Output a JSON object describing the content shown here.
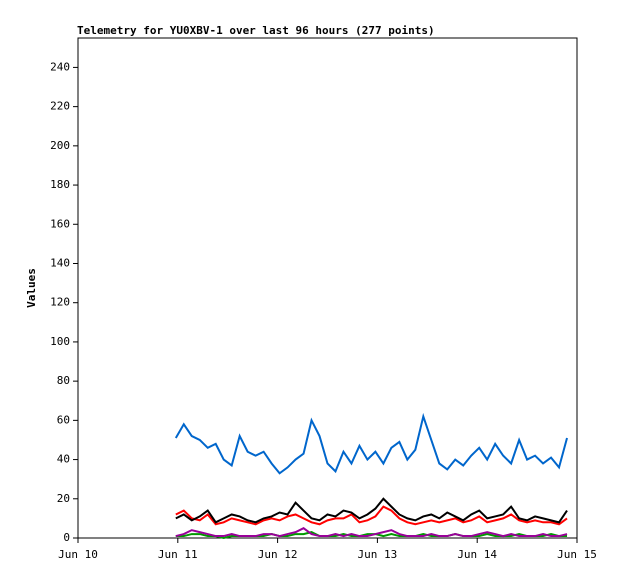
{
  "chart_data": {
    "type": "line",
    "title": "Telemetry for YU0XBV-1 over last 96 hours (277 points)",
    "y_label": "Values",
    "xlim": [
      10,
      15
    ],
    "xticks": [
      {
        "value": 10,
        "label": "Jun 10"
      },
      {
        "value": 11,
        "label": "Jun 11"
      },
      {
        "value": 12,
        "label": "Jun 12"
      },
      {
        "value": 13,
        "label": "Jun 13"
      },
      {
        "value": 14,
        "label": "Jun 14"
      },
      {
        "value": 15,
        "label": "Jun 15"
      }
    ],
    "ylim": [
      0,
      255
    ],
    "yticks": [
      0,
      20,
      40,
      60,
      80,
      100,
      120,
      140,
      160,
      180,
      200,
      220,
      240
    ],
    "x": [
      10.98,
      11.06,
      11.14,
      11.22,
      11.3,
      11.38,
      11.46,
      11.54,
      11.62,
      11.7,
      11.78,
      11.86,
      11.94,
      12.02,
      12.1,
      12.18,
      12.26,
      12.34,
      12.42,
      12.5,
      12.58,
      12.66,
      12.74,
      12.82,
      12.9,
      12.98,
      13.06,
      13.14,
      13.22,
      13.3,
      13.38,
      13.46,
      13.54,
      13.62,
      13.7,
      13.78,
      13.86,
      13.94,
      14.02,
      14.1,
      14.18,
      14.26,
      14.34,
      14.42,
      14.5,
      14.58,
      14.66,
      14.74,
      14.82,
      14.9
    ],
    "series": [
      {
        "color": "#0066cc",
        "values": [
          51,
          58,
          52,
          50,
          46,
          48,
          40,
          37,
          52,
          44,
          42,
          44,
          38,
          33,
          36,
          40,
          43,
          60,
          52,
          38,
          34,
          44,
          38,
          47,
          40,
          44,
          38,
          46,
          49,
          40,
          45,
          62,
          50,
          38,
          35,
          40,
          37,
          42,
          46,
          40,
          48,
          42,
          38,
          50,
          40,
          42,
          38,
          41,
          36,
          51
        ]
      },
      {
        "color": "#ff0000",
        "values": [
          12,
          14,
          10,
          9,
          12,
          7,
          8,
          10,
          9,
          8,
          7,
          9,
          10,
          9,
          11,
          12,
          10,
          8,
          7,
          9,
          10,
          10,
          12,
          8,
          9,
          11,
          16,
          14,
          10,
          8,
          7,
          8,
          9,
          8,
          9,
          10,
          8,
          9,
          11,
          8,
          9,
          10,
          12,
          9,
          8,
          9,
          8,
          8,
          7,
          10
        ]
      },
      {
        "color": "#000000",
        "values": [
          10,
          12,
          9,
          11,
          14,
          8,
          10,
          12,
          11,
          9,
          8,
          10,
          11,
          13,
          12,
          18,
          14,
          10,
          9,
          12,
          11,
          14,
          13,
          10,
          12,
          15,
          20,
          16,
          12,
          10,
          9,
          11,
          12,
          10,
          13,
          11,
          9,
          12,
          14,
          10,
          11,
          12,
          16,
          10,
          9,
          11,
          10,
          9,
          8,
          14
        ]
      },
      {
        "color": "#009900",
        "values": [
          1,
          1,
          2,
          2,
          1,
          1,
          0,
          1,
          1,
          1,
          1,
          1,
          2,
          1,
          1,
          2,
          2,
          3,
          1,
          1,
          1,
          2,
          1,
          1,
          2,
          2,
          1,
          2,
          1,
          1,
          1,
          2,
          1,
          1,
          1,
          2,
          1,
          1,
          1,
          2,
          1,
          1,
          1,
          2,
          1,
          1,
          1,
          2,
          1,
          1
        ]
      },
      {
        "color": "#990099",
        "values": [
          1,
          2,
          4,
          3,
          2,
          1,
          1,
          2,
          1,
          1,
          1,
          2,
          2,
          1,
          2,
          3,
          5,
          2,
          1,
          1,
          2,
          1,
          2,
          1,
          1,
          2,
          3,
          4,
          2,
          1,
          1,
          1,
          2,
          1,
          1,
          2,
          1,
          1,
          2,
          3,
          2,
          1,
          2,
          1,
          1,
          1,
          2,
          1,
          1,
          2
        ]
      }
    ]
  }
}
